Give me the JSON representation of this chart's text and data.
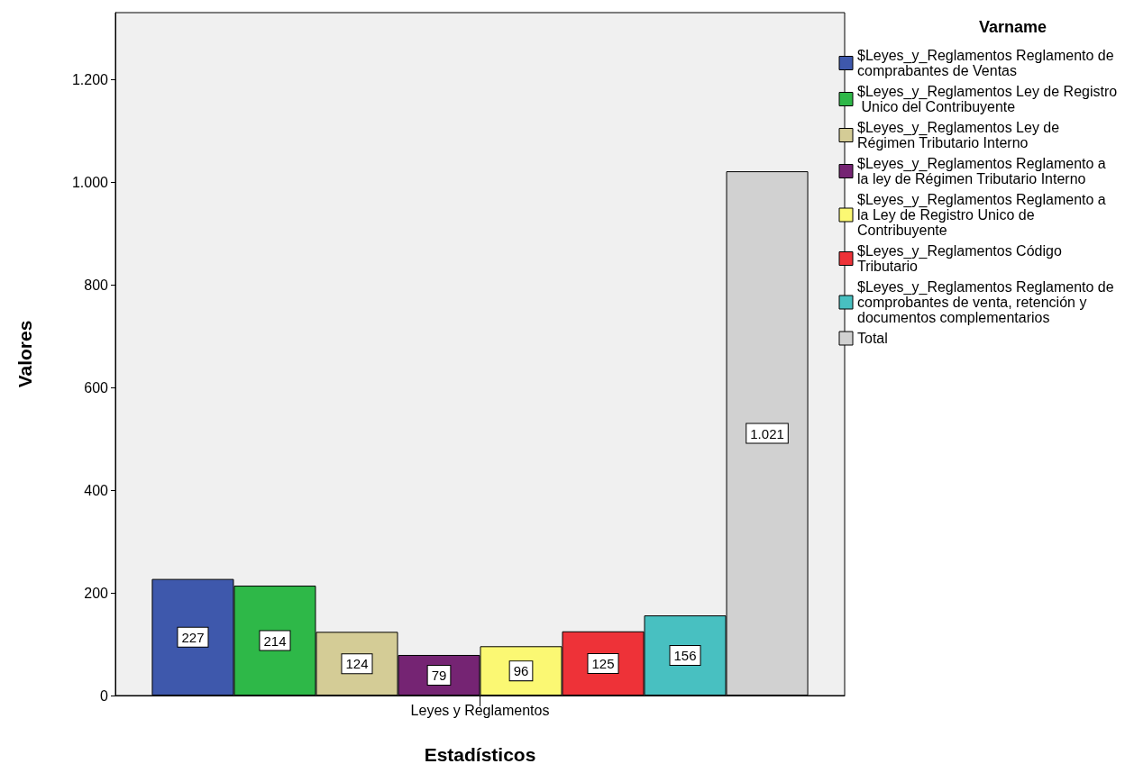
{
  "chart_data": {
    "type": "bar",
    "xlabel": "Estadísticos",
    "ylabel": "Valores",
    "legend_title": "Varname",
    "categories": [
      "Leyes y Reglamentos"
    ],
    "series": [
      {
        "name": "$Leyes_y_Reglamentos Reglamento de comprabantes de Ventas",
        "color": "#3e58ac",
        "values": [
          227
        ],
        "value_labels": [
          "227"
        ]
      },
      {
        "name": "$Leyes_y_Reglamentos Ley de Registro Unico del Contribuyente",
        "color": "#2eb848",
        "values": [
          214
        ],
        "value_labels": [
          "214"
        ]
      },
      {
        "name": "$Leyes_y_Reglamentos Ley de Régimen Tributario Interno",
        "color": "#d4cc96",
        "values": [
          124
        ],
        "value_labels": [
          "124"
        ]
      },
      {
        "name": "$Leyes_y_Reglamentos Reglamento a la ley de Régimen Tributario Interno",
        "color": "#752473",
        "values": [
          79
        ],
        "value_labels": [
          "79"
        ]
      },
      {
        "name": "$Leyes_y_Reglamentos Reglamento a la Ley de Registro Unico de Contribuyente",
        "color": "#fbf873",
        "values": [
          96
        ],
        "value_labels": [
          "96"
        ]
      },
      {
        "name": "$Leyes_y_Reglamentos Código Tributario",
        "color": "#ee3238",
        "values": [
          125
        ],
        "value_labels": [
          "125"
        ]
      },
      {
        "name": "$Leyes_y_Reglamentos Reglamento de comprobantes de venta, retención y documentos complementarios",
        "color": "#48c0c1",
        "values": [
          156
        ],
        "value_labels": [
          "156"
        ]
      },
      {
        "name": "Total",
        "color": "#d1d1d1",
        "values": [
          1021
        ],
        "value_labels": [
          "1.021"
        ]
      }
    ],
    "ylim": [
      0,
      1330
    ],
    "yticks": [
      0,
      200,
      400,
      600,
      800,
      {
        "value": 1000,
        "label": "1.000"
      },
      {
        "value": 1200,
        "label": "1.200"
      }
    ],
    "grid": false,
    "legend": "right"
  }
}
